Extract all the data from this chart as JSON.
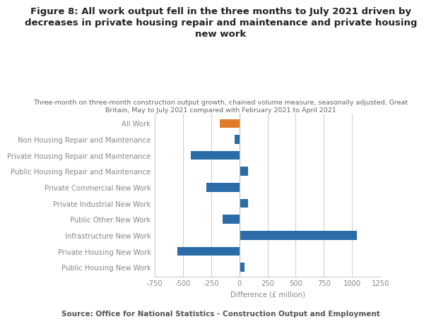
{
  "title": "Figure 8: All work output fell in the three months to July 2021 driven by\ndecreases in private housing repair and maintenance and private housing\nnew work",
  "subtitle": "Three-month on three-month construction output growth, chained volume measure, seasonally adjusted, Great\nBritain, May to July 2021 compared with February 2021 to April 2021",
  "source": "Source: Office for National Statistics - Construction Output and Employment",
  "xlabel": "Difference (£ million)",
  "categories": [
    "All Work",
    "Non Housing Repair and Maintenance",
    "Private Housing Repair and Maintenance",
    "Public Housing Repair and Maintenance",
    "Private Commercial New Work",
    "Private Industrial New Work",
    "Public Other New Work",
    "Infrastructure New Work",
    "Private Housing New Work",
    "Public Housing New Work"
  ],
  "values": [
    -170,
    -40,
    -430,
    80,
    -290,
    75,
    -145,
    1040,
    -550,
    45
  ],
  "colors": [
    "#e07b2a",
    "#2b6ca8",
    "#2b6ca8",
    "#2b6ca8",
    "#2b6ca8",
    "#2b6ca8",
    "#2b6ca8",
    "#2b6ca8",
    "#2b6ca8",
    "#2b6ca8"
  ],
  "xlim": [
    -750,
    1250
  ],
  "xticks": [
    -750,
    -500,
    -250,
    0,
    250,
    500,
    750,
    1000,
    1250
  ],
  "background_color": "#ffffff",
  "grid_color": "#cccccc",
  "title_fontsize": 9.5,
  "subtitle_fontsize": 6.8,
  "label_fontsize": 7.2,
  "tick_fontsize": 7.2,
  "source_fontsize": 7.5,
  "title_color": "#222222",
  "subtitle_color": "#666666",
  "source_color": "#555555",
  "tick_color": "#888888"
}
